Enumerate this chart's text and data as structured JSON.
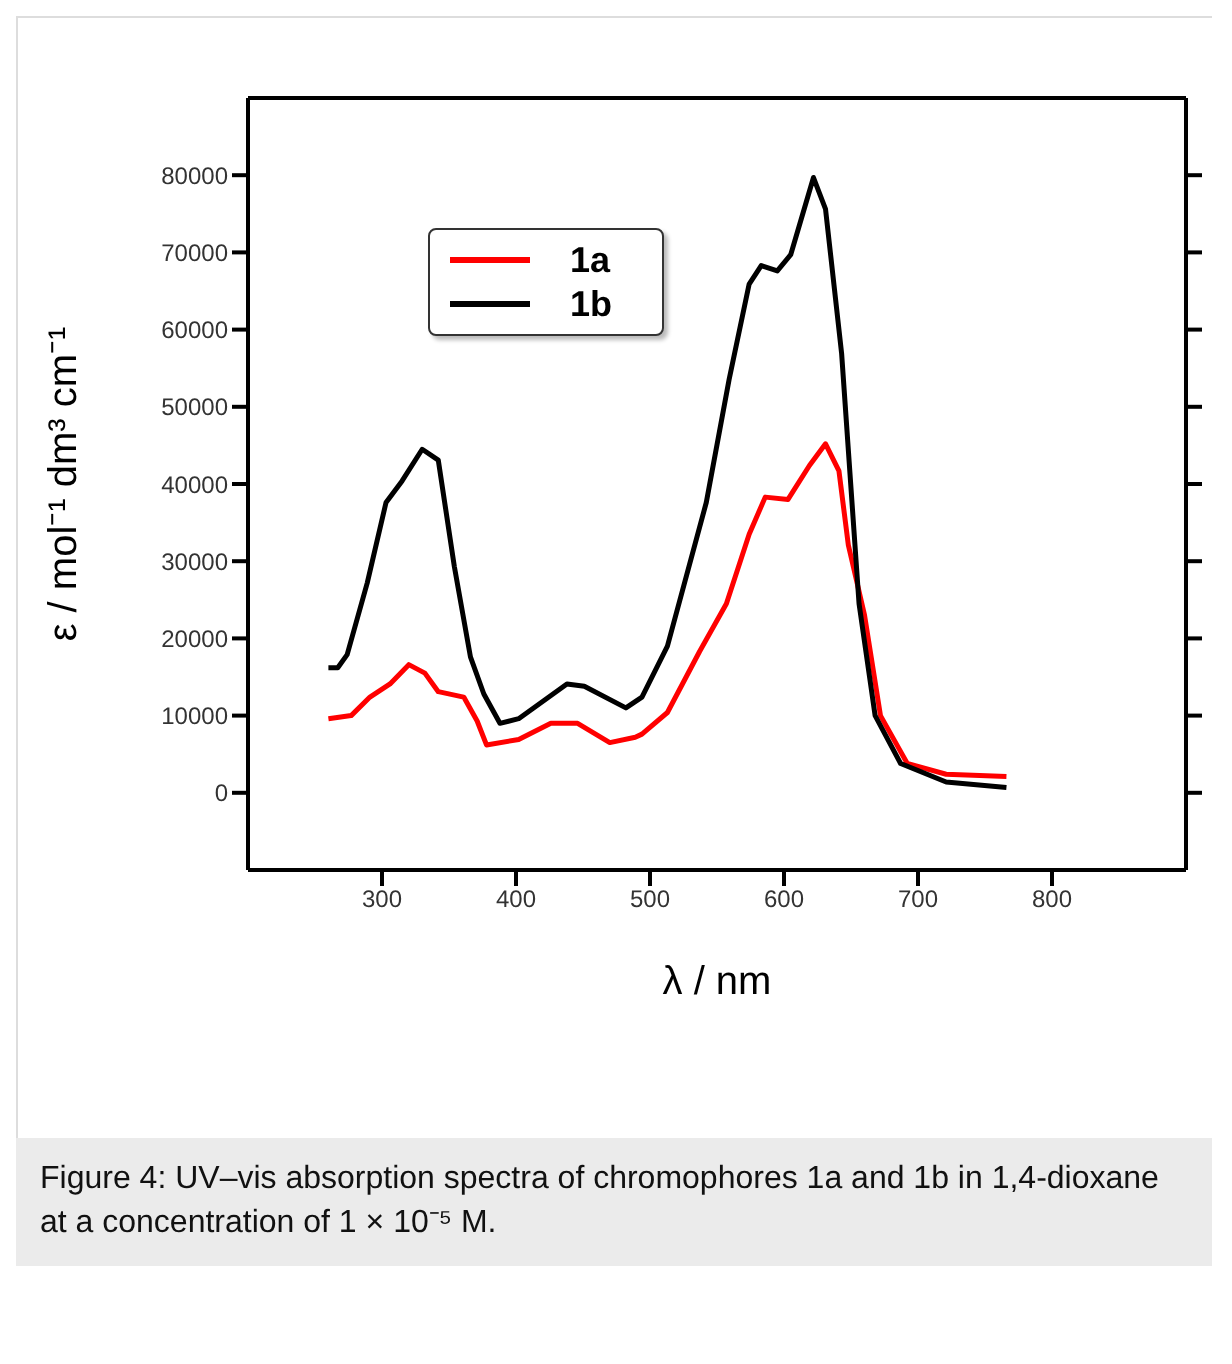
{
  "chart_data": {
    "type": "line",
    "xlabel": "λ / nm",
    "ylabel": "ε / mol⁻¹ dm³ cm⁻¹",
    "xlim": [
      200,
      900
    ],
    "xticks": [
      300,
      400,
      500,
      600,
      700,
      800
    ],
    "ylim": [
      -10000,
      90000
    ],
    "yticks": [
      0,
      10000,
      20000,
      30000,
      40000,
      50000,
      60000,
      70000,
      80000
    ],
    "legend": "top left",
    "marker": "none",
    "line_style": "solid",
    "series": [
      {
        "name": "1a",
        "color": "#ff0000",
        "x": [
          260,
          277,
          291,
          306,
          320,
          332,
          342,
          361,
          371,
          378,
          402,
          426,
          446,
          470,
          489,
          494,
          513,
          537,
          557,
          574,
          586,
          603,
          619,
          631,
          641,
          648,
          660,
          672,
          692,
          721,
          766
        ],
        "values": [
          9600,
          10000,
          12400,
          14100,
          16600,
          15500,
          13100,
          12400,
          9300,
          6200,
          6900,
          9000,
          9000,
          6500,
          7200,
          7600,
          10400,
          18300,
          24500,
          33500,
          38300,
          38000,
          42400,
          45200,
          41700,
          32100,
          23100,
          10000,
          3800,
          2400,
          2100
        ]
      },
      {
        "name": "1b",
        "color": "#000000",
        "x": [
          260,
          267,
          274,
          289,
          303,
          315,
          330,
          342,
          354,
          366,
          376,
          388,
          402,
          438,
          451,
          482,
          494,
          513,
          542,
          559,
          574,
          583,
          595,
          605,
          622,
          631,
          643,
          656,
          668,
          687,
          721,
          766
        ],
        "values": [
          16200,
          16200,
          17900,
          27200,
          37600,
          40400,
          44500,
          43100,
          29300,
          17600,
          12800,
          9000,
          9600,
          14100,
          13800,
          11000,
          12400,
          19000,
          37600,
          53500,
          65900,
          68300,
          67600,
          69700,
          79700,
          75600,
          56900,
          24500,
          10000,
          3800,
          1400,
          700
        ]
      }
    ],
    "annotations": [
      "Figure 4: UV–vis absorption spectra of chromophores 1a and 1b in 1,4-dioxane at a concentration of 1 × 10⁻⁵ M."
    ]
  }
}
